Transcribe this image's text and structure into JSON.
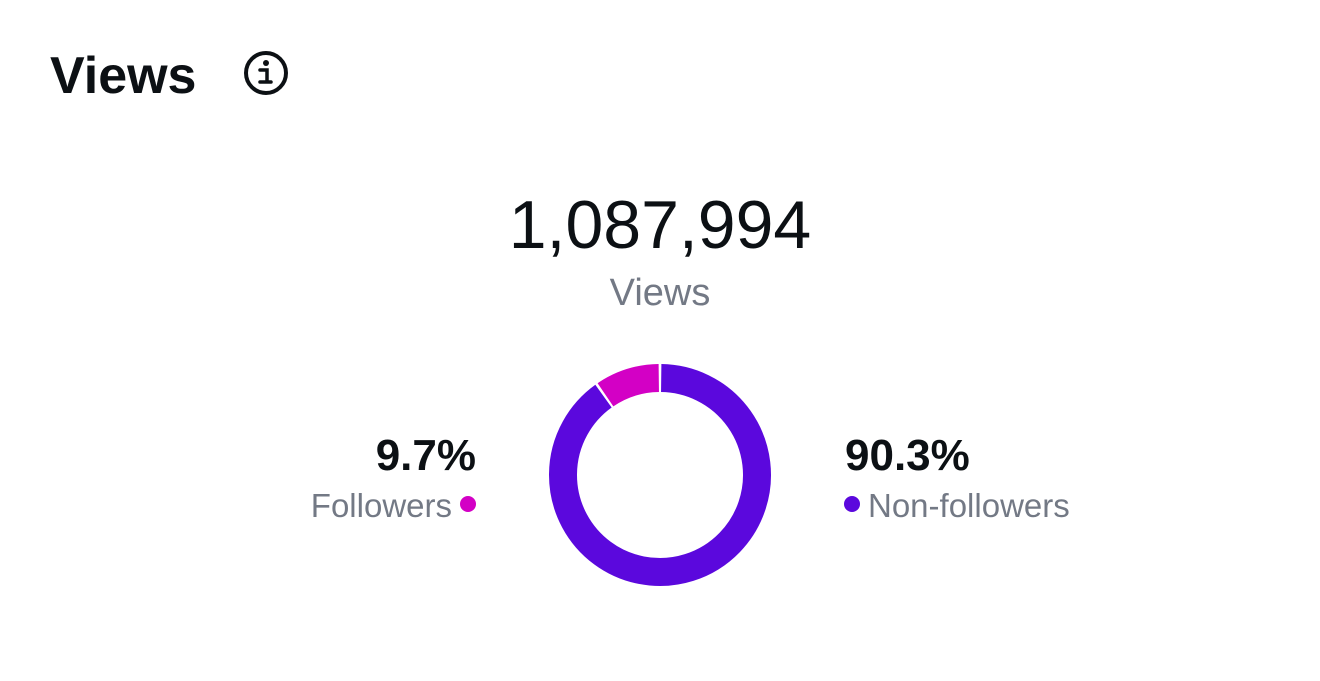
{
  "header": {
    "title": "Views"
  },
  "chart_data": {
    "type": "donut",
    "total": "1,087,994",
    "total_label": "Views",
    "categories": [
      "Followers",
      "Non-followers"
    ],
    "values": [
      9.7,
      90.3
    ],
    "value_labels": [
      "9.7%",
      "90.3%"
    ],
    "colors": [
      "#d300c5",
      "#5b08dd"
    ]
  }
}
